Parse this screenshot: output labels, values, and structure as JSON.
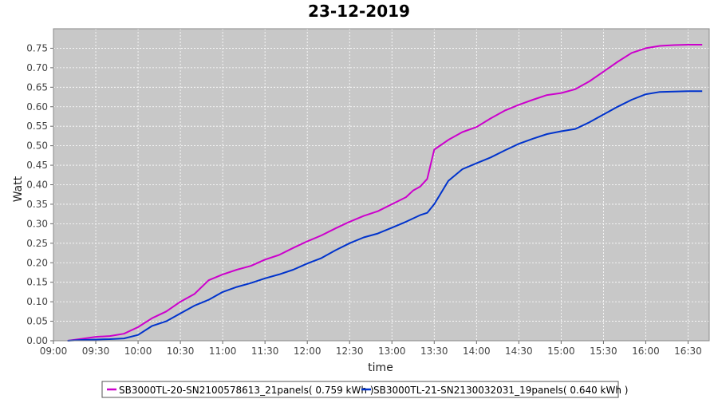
{
  "chart_data": {
    "type": "line",
    "title": "23-12-2019",
    "xlabel": "time",
    "ylabel": "Watt",
    "ylim": [
      0,
      0.8
    ],
    "xlim": [
      "09:00",
      "16:45"
    ],
    "x_ticks": [
      "09:00",
      "09:30",
      "10:00",
      "10:30",
      "11:00",
      "11:30",
      "12:00",
      "12:30",
      "13:00",
      "13:30",
      "14:00",
      "14:30",
      "15:00",
      "15:30",
      "16:00",
      "16:30"
    ],
    "y_ticks": [
      "0.00",
      "0.05",
      "0.10",
      "0.15",
      "0.20",
      "0.25",
      "0.30",
      "0.35",
      "0.40",
      "0.45",
      "0.50",
      "0.55",
      "0.60",
      "0.65",
      "0.70",
      "0.75"
    ],
    "grid": true,
    "legend_position": "bottom",
    "background": "#c8c8c8",
    "series": [
      {
        "name": "SB3000TL-20-SN2100578613_21panels( 0.759 kWh )",
        "color": "#cc00cc",
        "points": [
          [
            "09:10",
            0.0
          ],
          [
            "09:20",
            0.005
          ],
          [
            "09:30",
            0.01
          ],
          [
            "09:40",
            0.012
          ],
          [
            "09:50",
            0.018
          ],
          [
            "10:00",
            0.035
          ],
          [
            "10:10",
            0.058
          ],
          [
            "10:20",
            0.075
          ],
          [
            "10:30",
            0.1
          ],
          [
            "10:40",
            0.12
          ],
          [
            "10:50",
            0.155
          ],
          [
            "11:00",
            0.17
          ],
          [
            "11:10",
            0.182
          ],
          [
            "11:20",
            0.192
          ],
          [
            "11:30",
            0.208
          ],
          [
            "11:40",
            0.22
          ],
          [
            "11:50",
            0.238
          ],
          [
            "12:00",
            0.255
          ],
          [
            "12:10",
            0.27
          ],
          [
            "12:20",
            0.288
          ],
          [
            "12:30",
            0.305
          ],
          [
            "12:40",
            0.32
          ],
          [
            "12:50",
            0.332
          ],
          [
            "13:00",
            0.35
          ],
          [
            "13:10",
            0.368
          ],
          [
            "13:15",
            0.385
          ],
          [
            "13:20",
            0.395
          ],
          [
            "13:25",
            0.415
          ],
          [
            "13:30",
            0.49
          ],
          [
            "13:40",
            0.515
          ],
          [
            "13:50",
            0.535
          ],
          [
            "14:00",
            0.548
          ],
          [
            "14:10",
            0.57
          ],
          [
            "14:20",
            0.59
          ],
          [
            "14:30",
            0.605
          ],
          [
            "14:40",
            0.618
          ],
          [
            "14:50",
            0.63
          ],
          [
            "15:00",
            0.635
          ],
          [
            "15:10",
            0.645
          ],
          [
            "15:20",
            0.665
          ],
          [
            "15:30",
            0.69
          ],
          [
            "15:40",
            0.715
          ],
          [
            "15:50",
            0.738
          ],
          [
            "16:00",
            0.75
          ],
          [
            "16:10",
            0.756
          ],
          [
            "16:20",
            0.758
          ],
          [
            "16:30",
            0.759
          ],
          [
            "16:40",
            0.759
          ]
        ]
      },
      {
        "name": "SB3000TL-21-SN2130032031_19panels( 0.640 kWh )",
        "color": "#0033cc",
        "points": [
          [
            "09:10",
            0.0
          ],
          [
            "09:20",
            0.002
          ],
          [
            "09:30",
            0.003
          ],
          [
            "09:40",
            0.004
          ],
          [
            "09:50",
            0.006
          ],
          [
            "10:00",
            0.015
          ],
          [
            "10:10",
            0.038
          ],
          [
            "10:20",
            0.05
          ],
          [
            "10:30",
            0.07
          ],
          [
            "10:40",
            0.09
          ],
          [
            "10:50",
            0.105
          ],
          [
            "11:00",
            0.125
          ],
          [
            "11:10",
            0.138
          ],
          [
            "11:20",
            0.148
          ],
          [
            "11:30",
            0.16
          ],
          [
            "11:40",
            0.17
          ],
          [
            "11:50",
            0.182
          ],
          [
            "12:00",
            0.198
          ],
          [
            "12:10",
            0.212
          ],
          [
            "12:20",
            0.232
          ],
          [
            "12:30",
            0.25
          ],
          [
            "12:40",
            0.265
          ],
          [
            "12:50",
            0.275
          ],
          [
            "13:00",
            0.29
          ],
          [
            "13:10",
            0.305
          ],
          [
            "13:20",
            0.322
          ],
          [
            "13:25",
            0.328
          ],
          [
            "13:30",
            0.35
          ],
          [
            "13:40",
            0.41
          ],
          [
            "13:50",
            0.44
          ],
          [
            "14:00",
            0.455
          ],
          [
            "14:10",
            0.47
          ],
          [
            "14:20",
            0.488
          ],
          [
            "14:30",
            0.505
          ],
          [
            "14:40",
            0.518
          ],
          [
            "14:50",
            0.53
          ],
          [
            "15:00",
            0.537
          ],
          [
            "15:10",
            0.543
          ],
          [
            "15:20",
            0.56
          ],
          [
            "15:30",
            0.58
          ],
          [
            "15:40",
            0.6
          ],
          [
            "15:50",
            0.618
          ],
          [
            "16:00",
            0.632
          ],
          [
            "16:10",
            0.638
          ],
          [
            "16:20",
            0.639
          ],
          [
            "16:30",
            0.64
          ],
          [
            "16:40",
            0.64
          ]
        ]
      }
    ]
  }
}
